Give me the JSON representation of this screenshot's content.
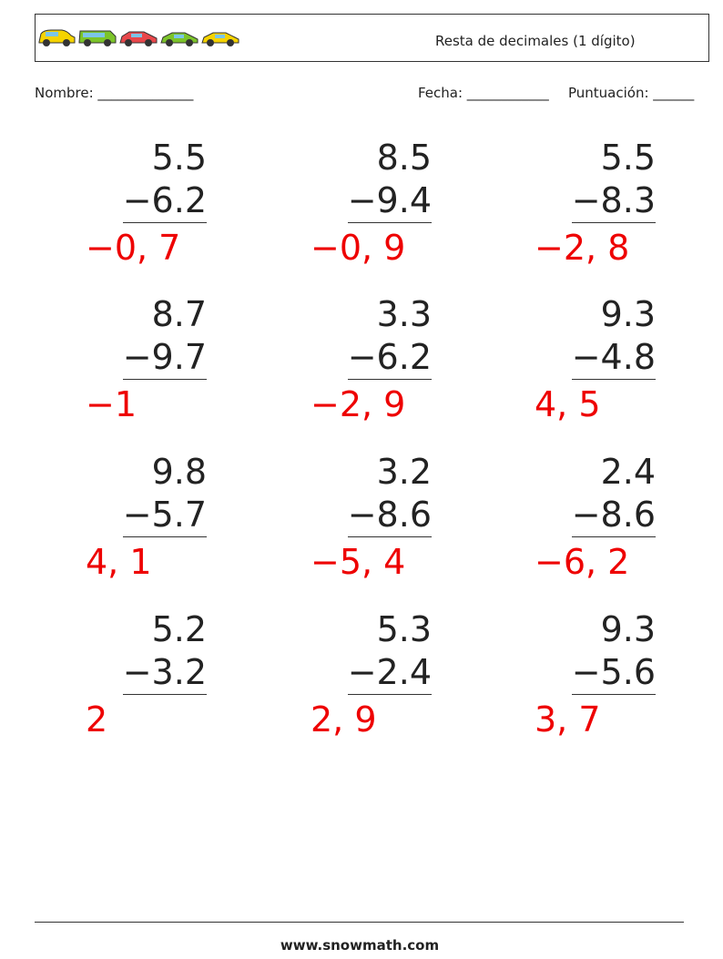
{
  "header": {
    "title": "Resta de decimales (1 dígito)"
  },
  "fields": {
    "name": "Nombre: ______________",
    "date": "Fecha: ____________",
    "score": "Puntuación: ______"
  },
  "problems": [
    {
      "top": "5.5",
      "bottom": "−6.2",
      "answer": "−0, 7"
    },
    {
      "top": "8.5",
      "bottom": "−9.4",
      "answer": "−0, 9"
    },
    {
      "top": "5.5",
      "bottom": "−8.3",
      "answer": "−2, 8"
    },
    {
      "top": "8.7",
      "bottom": "−9.7",
      "answer": "−1"
    },
    {
      "top": "3.3",
      "bottom": "−6.2",
      "answer": "−2, 9"
    },
    {
      "top": "9.3",
      "bottom": "−4.8",
      "answer": "4, 5"
    },
    {
      "top": "9.8",
      "bottom": "−5.7",
      "answer": "4, 1"
    },
    {
      "top": "3.2",
      "bottom": "−8.6",
      "answer": "−5, 4"
    },
    {
      "top": "2.4",
      "bottom": "−8.6",
      "answer": "−6, 2"
    },
    {
      "top": "5.2",
      "bottom": "−3.2",
      "answer": "2"
    },
    {
      "top": "5.3",
      "bottom": "−2.4",
      "answer": "2, 9"
    },
    {
      "top": "9.3",
      "bottom": "−5.6",
      "answer": "3, 7"
    }
  ],
  "footer": {
    "url": "www.snowmath.com"
  }
}
